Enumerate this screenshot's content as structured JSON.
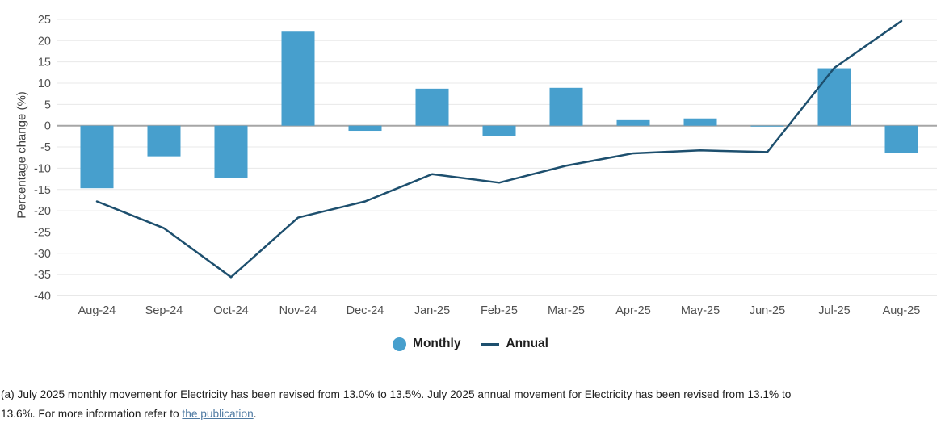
{
  "chart_data": {
    "type": "bar+line",
    "categories": [
      "Aug-24",
      "Sep-24",
      "Oct-24",
      "Nov-24",
      "Dec-24",
      "Jan-25",
      "Feb-25",
      "Mar-25",
      "Apr-25",
      "May-25",
      "Jun-25",
      "Jul-25",
      "Aug-25"
    ],
    "series": [
      {
        "name": "Monthly",
        "type": "bar",
        "color": "#479fcd",
        "values": [
          -14.7,
          -7.2,
          -12.2,
          22.1,
          -1.2,
          8.7,
          -2.5,
          8.9,
          1.3,
          1.7,
          -0.2,
          13.5,
          -6.5
        ]
      },
      {
        "name": "Annual",
        "type": "line",
        "color": "#1d4f6e",
        "values": [
          -17.8,
          -24.1,
          -35.6,
          -21.6,
          -17.8,
          -11.4,
          -13.4,
          -9.4,
          -6.5,
          -5.8,
          -6.2,
          13.6,
          24.6
        ]
      }
    ],
    "title": "",
    "xlabel": "",
    "ylabel": "Percentage change (%)",
    "ylim": [
      -40,
      25
    ],
    "ytick_step": 5,
    "grid": true,
    "zero_line_color": "#a6a6a6",
    "gridline_color": "#e8e8e8",
    "legend_position": "bottom-center"
  },
  "legend": {
    "monthly_label": "Monthly",
    "annual_label": "Annual"
  },
  "footnote": {
    "line1": "(a) July 2025 monthly movement for Electricity has been revised from 13.0% to 13.5%. July 2025 annual movement for Electricity has been revised from 13.1% to",
    "line2_prefix": "13.6%. For more information refer to ",
    "link_text": "the publication",
    "line2_suffix": "."
  }
}
